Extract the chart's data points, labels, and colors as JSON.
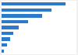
{
  "values": [
    92,
    72,
    58,
    38,
    25,
    17,
    12,
    8,
    3
  ],
  "bar_color": "#2b7bca",
  "background_color": "#f0f0f0",
  "plot_bg_color": "#ffffff",
  "bar_height": 0.6,
  "xlim": [
    0,
    108
  ],
  "n_bars": 9
}
